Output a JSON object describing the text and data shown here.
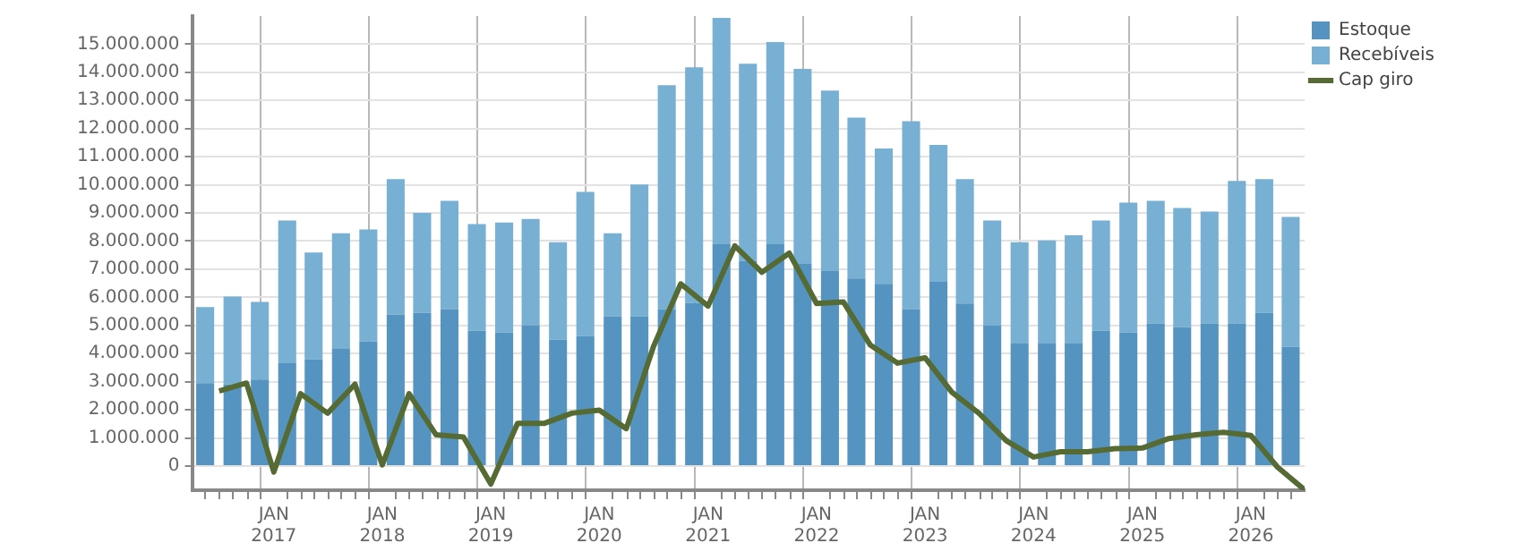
{
  "chart_data": {
    "type": "bar",
    "stacked": true,
    "grid": true,
    "legend": "top right",
    "x": [
      "2016-05-15",
      "2016-08-15",
      "2016-11-15",
      "2017-02-15",
      "2017-05-15",
      "2017-08-15",
      "2017-11-15",
      "2018-02-15",
      "2018-05-15",
      "2018-08-15",
      "2018-11-15",
      "2019-02-15",
      "2019-05-15",
      "2019-08-15",
      "2019-11-15",
      "2020-02-15",
      "2020-05-15",
      "2020-08-15",
      "2020-11-15",
      "2021-02-15",
      "2021-05-15",
      "2021-08-15",
      "2021-11-15",
      "2022-02-15",
      "2022-05-15",
      "2022-08-15",
      "2022-11-15",
      "2023-02-15",
      "2023-05-15",
      "2023-08-15",
      "2023-11-15",
      "2024-02-15",
      "2024-05-15",
      "2024-08-15",
      "2024-11-15",
      "2025-02-15",
      "2025-05-15",
      "2025-08-15",
      "2025-11-15",
      "2026-02-15",
      "2026-05-15"
    ],
    "series": [
      {
        "name": "Estoque",
        "color": "#5593c0",
        "values": [
          2950000,
          2900000,
          3080000,
          3660000,
          3790000,
          4170000,
          4430000,
          5390000,
          5450000,
          5580000,
          4810000,
          4750000,
          5010000,
          4490000,
          4620000,
          5330000,
          5330000,
          5580000,
          5800000,
          7890000,
          7300000,
          7890000,
          7190000,
          6930000,
          6670000,
          6480000,
          5580000,
          6550000,
          5780000,
          5010000,
          4360000,
          4360000,
          4360000,
          4810000,
          4750000,
          5070000,
          4940000,
          5070000,
          5070000,
          5450000,
          4240000
        ]
      },
      {
        "name": "Recebíveis",
        "color": "#77b0d3",
        "values": [
          2700000,
          3130000,
          2760000,
          5070000,
          3800000,
          4110000,
          3980000,
          4810000,
          3550000,
          3850000,
          3790000,
          3910000,
          3780000,
          3470000,
          5130000,
          2950000,
          4680000,
          7960000,
          8380000,
          8050000,
          7010000,
          7190000,
          6930000,
          6420000,
          5720000,
          4810000,
          6680000,
          4870000,
          4420000,
          3720000,
          3600000,
          3660000,
          3850000,
          3920000,
          4620000,
          4360000,
          4240000,
          3980000,
          5070000,
          4750000,
          4620000
        ]
      },
      {
        "name": "Cap giro",
        "type": "line",
        "color": "#556b33",
        "x": [
          "2016-07",
          "2016-10",
          "2017-01",
          "2017-04",
          "2017-07",
          "2017-10",
          "2018-01",
          "2018-04",
          "2018-07",
          "2018-10",
          "2019-01",
          "2019-04",
          "2019-07",
          "2019-10",
          "2020-01",
          "2020-04",
          "2020-07",
          "2020-10",
          "2021-01",
          "2021-04",
          "2021-07",
          "2021-10",
          "2022-01",
          "2022-04",
          "2022-07",
          "2022-10",
          "2023-01",
          "2023-04",
          "2023-07",
          "2023-10",
          "2024-01",
          "2024-04",
          "2024-07",
          "2024-10",
          "2025-01",
          "2025-04",
          "2025-07",
          "2025-10",
          "2026-01",
          "2026-04",
          "2026-07"
        ],
        "values": [
          2670000,
          2950000,
          -210000,
          2570000,
          1880000,
          2910000,
          40000,
          2570000,
          1110000,
          1030000,
          -640000,
          1520000,
          1520000,
          1880000,
          1990000,
          1330000,
          4240000,
          6480000,
          5690000,
          7830000,
          6890000,
          7570000,
          5780000,
          5840000,
          4300000,
          3660000,
          3850000,
          2630000,
          1880000,
          900000,
          320000,
          510000,
          510000,
          620000,
          640000,
          980000,
          1110000,
          1200000,
          1090000,
          -40000,
          -850000
        ]
      }
    ],
    "xlim": [
      "2016-04",
      "2026-07"
    ],
    "xticks": [
      {
        "value": "2016-07",
        "label": null
      },
      {
        "value": "2016-10",
        "label": null
      },
      {
        "value": "2017-01",
        "label": "JAN 2017"
      },
      {
        "value": "2017-04",
        "label": null
      },
      {
        "value": "2017-07",
        "label": null
      },
      {
        "value": "2017-10",
        "label": null
      },
      {
        "value": "2018-01",
        "label": "JAN 2018"
      },
      {
        "value": "2018-04",
        "label": null
      },
      {
        "value": "2018-07",
        "label": null
      },
      {
        "value": "2018-10",
        "label": null
      },
      {
        "value": "2019-01",
        "label": "JAN 2019"
      },
      {
        "value": "2019-04",
        "label": null
      },
      {
        "value": "2019-07",
        "label": null
      },
      {
        "value": "2019-10",
        "label": null
      },
      {
        "value": "2020-01",
        "label": "JAN 2020"
      },
      {
        "value": "2020-04",
        "label": null
      },
      {
        "value": "2020-07",
        "label": null
      },
      {
        "value": "2020-10",
        "label": null
      },
      {
        "value": "2021-01",
        "label": "JAN 2021"
      },
      {
        "value": "2021-04",
        "label": null
      },
      {
        "value": "2021-07",
        "label": null
      },
      {
        "value": "2021-10",
        "label": null
      },
      {
        "value": "2022-01",
        "label": "JAN 2022"
      },
      {
        "value": "2022-04",
        "label": null
      },
      {
        "value": "2022-07",
        "label": null
      },
      {
        "value": "2022-10",
        "label": null
      },
      {
        "value": "2023-01",
        "label": "JAN 2023"
      },
      {
        "value": "2023-04",
        "label": null
      },
      {
        "value": "2023-07",
        "label": null
      },
      {
        "value": "2023-10",
        "label": null
      },
      {
        "value": "2024-01",
        "label": "JAN 2024"
      },
      {
        "value": "2024-04",
        "label": null
      },
      {
        "value": "2024-07",
        "label": null
      },
      {
        "value": "2024-10",
        "label": null
      },
      {
        "value": "2025-01",
        "label": "JAN 2025"
      },
      {
        "value": "2025-04",
        "label": null
      },
      {
        "value": "2025-07",
        "label": null
      },
      {
        "value": "2025-10",
        "label": null
      },
      {
        "value": "2026-01",
        "label": "JAN 2026"
      },
      {
        "value": "2026-04",
        "label": null
      }
    ],
    "ylim": [
      -860000,
      16000000
    ],
    "yticks": [
      {
        "value": 0,
        "label": "0"
      },
      {
        "value": 1000000,
        "label": "1.000.000"
      },
      {
        "value": 2000000,
        "label": "2.000.000"
      },
      {
        "value": 3000000,
        "label": "3.000.000"
      },
      {
        "value": 4000000,
        "label": "4.000.000"
      },
      {
        "value": 5000000,
        "label": "5.000.000"
      },
      {
        "value": 6000000,
        "label": "6.000.000"
      },
      {
        "value": 7000000,
        "label": "7.000.000"
      },
      {
        "value": 8000000,
        "label": "8.000.000"
      },
      {
        "value": 9000000,
        "label": "9.000.000"
      },
      {
        "value": 10000000,
        "label": "10.000.000"
      },
      {
        "value": 11000000,
        "label": "11.000.000"
      },
      {
        "value": 12000000,
        "label": "12.000.000"
      },
      {
        "value": 13000000,
        "label": "13.000.000"
      },
      {
        "value": 14000000,
        "label": "14.000.000"
      },
      {
        "value": 15000000,
        "label": "15.000.000"
      }
    ]
  }
}
